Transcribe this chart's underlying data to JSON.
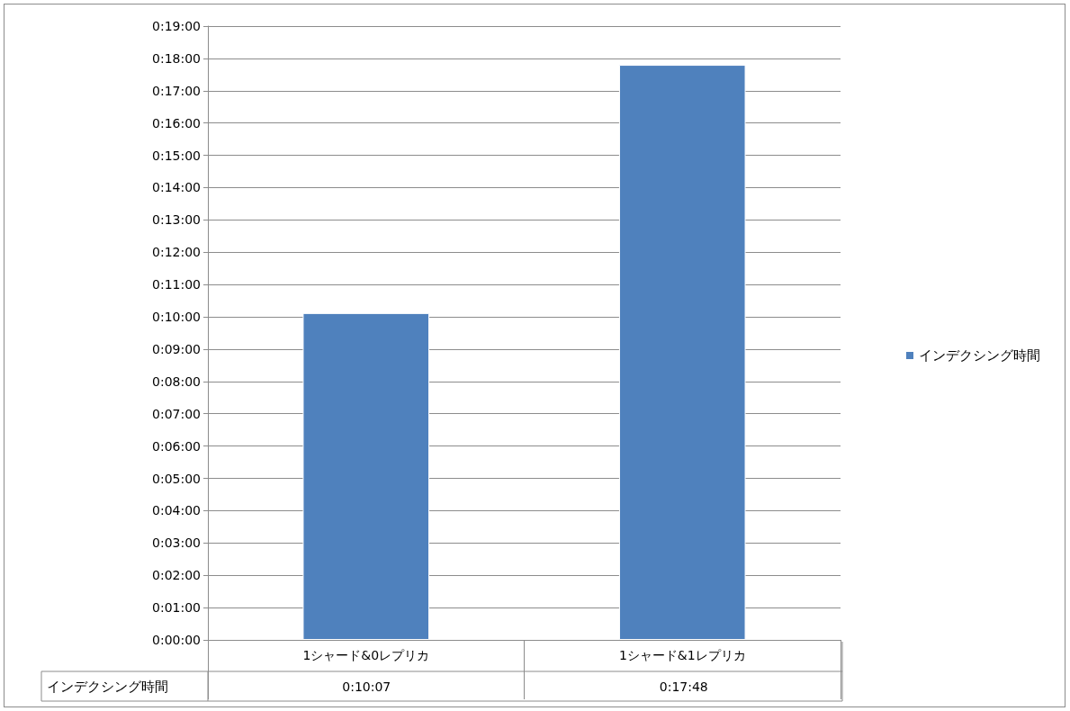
{
  "chart_data": {
    "type": "bar",
    "categories": [
      "1シャード&0レプリカ",
      "1シャード&1レプリカ"
    ],
    "series": [
      {
        "name": "インデクシング時間",
        "color": "#4f81bd",
        "values": [
          10.1167,
          17.8
        ],
        "value_labels": [
          "0:10:07",
          "0:17:48"
        ]
      }
    ],
    "ylim": [
      0,
      19
    ],
    "yticks": [
      {
        "value": 0,
        "label": "0:00:00"
      },
      {
        "value": 1,
        "label": "0:01:00"
      },
      {
        "value": 2,
        "label": "0:02:00"
      },
      {
        "value": 3,
        "label": "0:03:00"
      },
      {
        "value": 4,
        "label": "0:04:00"
      },
      {
        "value": 5,
        "label": "0:05:00"
      },
      {
        "value": 6,
        "label": "0:06:00"
      },
      {
        "value": 7,
        "label": "0:07:00"
      },
      {
        "value": 8,
        "label": "0:08:00"
      },
      {
        "value": 9,
        "label": "0:09:00"
      },
      {
        "value": 10,
        "label": "0:10:00"
      },
      {
        "value": 11,
        "label": "0:11:00"
      },
      {
        "value": 12,
        "label": "0:12:00"
      },
      {
        "value": 13,
        "label": "0:13:00"
      },
      {
        "value": 14,
        "label": "0:14:00"
      },
      {
        "value": 15,
        "label": "0:15:00"
      },
      {
        "value": 16,
        "label": "0:16:00"
      },
      {
        "value": 17,
        "label": "0:17:00"
      },
      {
        "value": 18,
        "label": "0:18:00"
      },
      {
        "value": 19,
        "label": "0:19:00"
      }
    ],
    "grid": "y",
    "legend": "right"
  }
}
